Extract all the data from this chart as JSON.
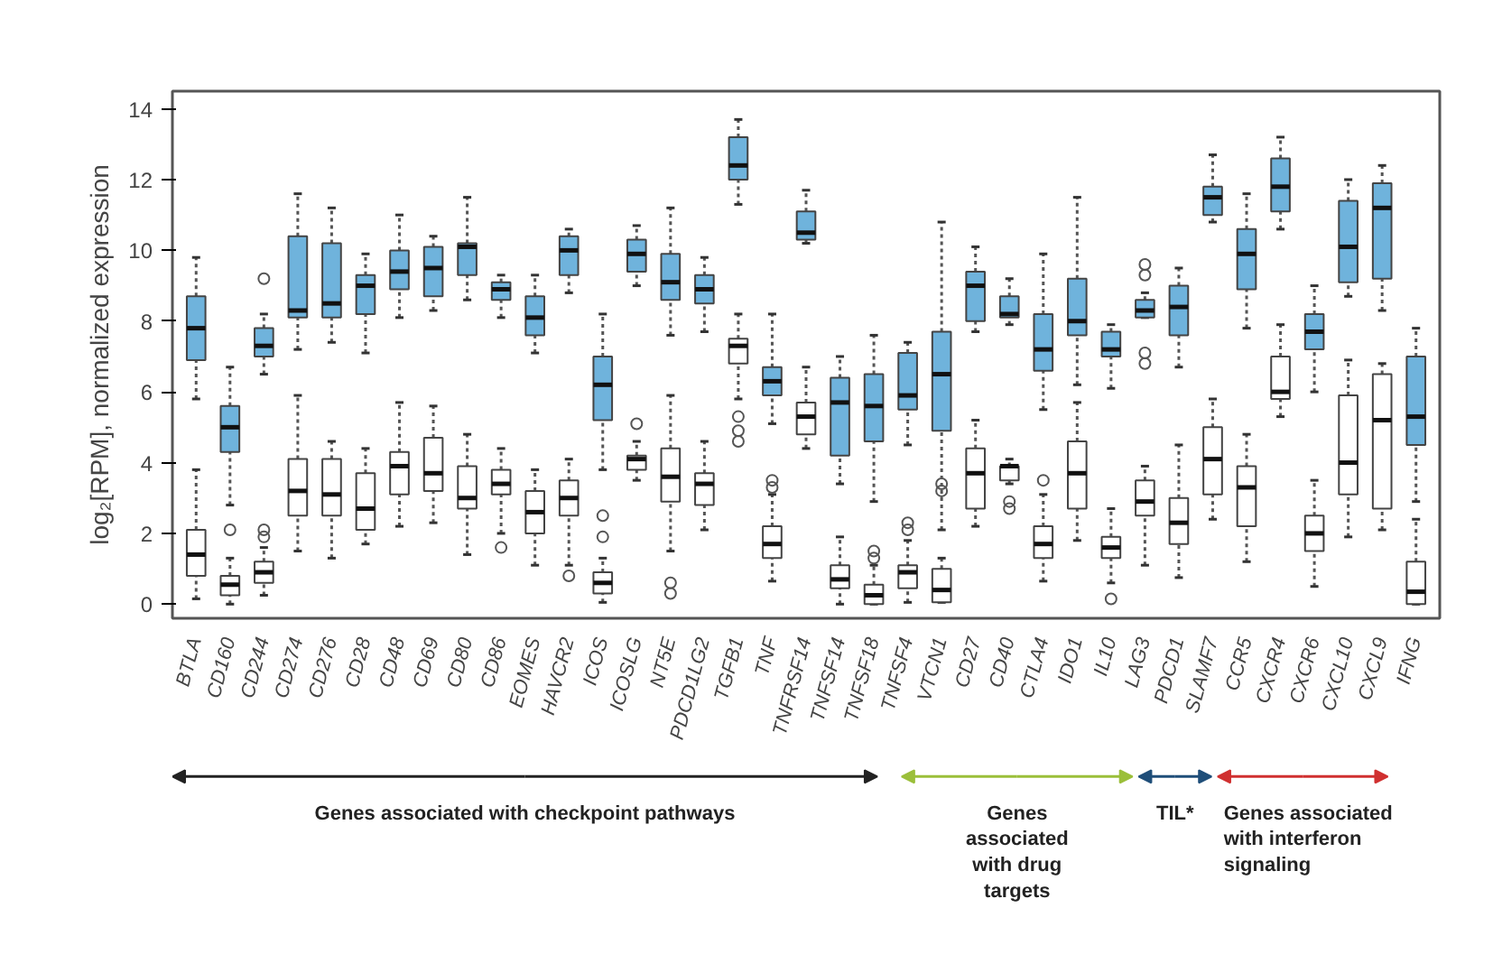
{
  "chart_data": {
    "type": "box",
    "ylabel": "log₂[RPM], normalized expression",
    "ylim": [
      -0.4,
      14.5
    ],
    "yticks": [
      0,
      2,
      4,
      6,
      8,
      10,
      12,
      14
    ],
    "grid": false,
    "categories": [
      "BTLA",
      "CD160",
      "CD244",
      "CD274",
      "CD276",
      "CD28",
      "CD48",
      "CD69",
      "CD80",
      "CD86",
      "EOMES",
      "HAVCR2",
      "ICOS",
      "ICOSLG",
      "NT5E",
      "PDCD1LG2",
      "TGFB1",
      "TNF",
      "TNFRSF14",
      "TNFSF14",
      "TNFSF18",
      "TNFSF4",
      "VTCN1",
      "CD27",
      "CD40",
      "CTLA4",
      "IDO1",
      "IL10",
      "LAG3",
      "PDCD1",
      "SLAMF7",
      "CCR5",
      "CXCR4",
      "CXCR6",
      "CXCL10",
      "CXCL9",
      "IFNG"
    ],
    "series": [
      {
        "color": "#6fb3dc",
        "boxes": [
          {
            "low": 5.8,
            "q1": 6.9,
            "median": 7.8,
            "q3": 8.7,
            "high": 9.8
          },
          {
            "low": 2.8,
            "q1": 4.3,
            "median": 5.0,
            "q3": 5.6,
            "high": 6.7
          },
          {
            "low": 6.5,
            "q1": 7.0,
            "median": 7.3,
            "q3": 7.8,
            "high": 8.2,
            "outliers": [
              9.2
            ]
          },
          {
            "low": 7.2,
            "q1": 8.1,
            "median": 8.3,
            "q3": 10.4,
            "high": 11.6
          },
          {
            "low": 7.4,
            "q1": 8.1,
            "median": 8.5,
            "q3": 10.2,
            "high": 11.2
          },
          {
            "low": 7.1,
            "q1": 8.2,
            "median": 9.0,
            "q3": 9.3,
            "high": 9.9
          },
          {
            "low": 8.1,
            "q1": 8.9,
            "median": 9.4,
            "q3": 10.0,
            "high": 11.0
          },
          {
            "low": 8.3,
            "q1": 8.7,
            "median": 9.5,
            "q3": 10.1,
            "high": 10.4
          },
          {
            "low": 8.6,
            "q1": 9.3,
            "median": 10.1,
            "q3": 10.2,
            "high": 11.5
          },
          {
            "low": 8.1,
            "q1": 8.6,
            "median": 8.9,
            "q3": 9.1,
            "high": 9.3
          },
          {
            "low": 7.1,
            "q1": 7.6,
            "median": 8.1,
            "q3": 8.7,
            "high": 9.3
          },
          {
            "low": 8.8,
            "q1": 9.3,
            "median": 10.0,
            "q3": 10.4,
            "high": 10.6
          },
          {
            "low": 3.8,
            "q1": 5.2,
            "median": 6.2,
            "q3": 7.0,
            "high": 8.2
          },
          {
            "low": 9.0,
            "q1": 9.4,
            "median": 9.9,
            "q3": 10.3,
            "high": 10.7
          },
          {
            "low": 7.6,
            "q1": 8.6,
            "median": 9.1,
            "q3": 9.9,
            "high": 11.2
          },
          {
            "low": 7.7,
            "q1": 8.5,
            "median": 8.9,
            "q3": 9.3,
            "high": 9.8
          },
          {
            "low": 11.3,
            "q1": 12.0,
            "median": 12.4,
            "q3": 13.2,
            "high": 13.7
          },
          {
            "low": 5.1,
            "q1": 5.9,
            "median": 6.3,
            "q3": 6.7,
            "high": 8.2
          },
          {
            "low": 10.2,
            "q1": 10.3,
            "median": 10.5,
            "q3": 11.1,
            "high": 11.7
          },
          {
            "low": 3.4,
            "q1": 4.2,
            "median": 5.7,
            "q3": 6.4,
            "high": 7.0
          },
          {
            "low": 2.9,
            "q1": 4.6,
            "median": 5.6,
            "q3": 6.5,
            "high": 7.6
          },
          {
            "low": 4.5,
            "q1": 5.5,
            "median": 5.9,
            "q3": 7.1,
            "high": 7.4
          },
          {
            "low": 2.1,
            "q1": 4.9,
            "median": 6.5,
            "q3": 7.7,
            "high": 10.8
          },
          {
            "low": 7.7,
            "q1": 8.0,
            "median": 9.0,
            "q3": 9.4,
            "high": 10.1
          },
          {
            "low": 7.9,
            "q1": 8.1,
            "median": 8.2,
            "q3": 8.7,
            "high": 9.2
          },
          {
            "low": 5.5,
            "q1": 6.6,
            "median": 7.2,
            "q3": 8.2,
            "high": 9.9
          },
          {
            "low": 6.2,
            "q1": 7.6,
            "median": 8.0,
            "q3": 9.2,
            "high": 11.5
          },
          {
            "low": 6.1,
            "q1": 7.0,
            "median": 7.2,
            "q3": 7.7,
            "high": 7.9
          },
          {
            "low": 8.1,
            "q1": 8.1,
            "median": 8.3,
            "q3": 8.6,
            "high": 8.8,
            "outliers": [
              9.6,
              9.3,
              7.1,
              6.8
            ]
          },
          {
            "low": 6.7,
            "q1": 7.6,
            "median": 8.4,
            "q3": 9.0,
            "high": 9.5
          },
          {
            "low": 10.8,
            "q1": 11.0,
            "median": 11.5,
            "q3": 11.8,
            "high": 12.7
          },
          {
            "low": 7.8,
            "q1": 8.9,
            "median": 9.9,
            "q3": 10.6,
            "high": 11.6
          },
          {
            "low": 10.6,
            "q1": 11.1,
            "median": 11.8,
            "q3": 12.6,
            "high": 13.2
          },
          {
            "low": 6.0,
            "q1": 7.2,
            "median": 7.7,
            "q3": 8.2,
            "high": 9.0
          },
          {
            "low": 8.7,
            "q1": 9.1,
            "median": 10.1,
            "q3": 11.4,
            "high": 12.0
          },
          {
            "low": 8.3,
            "q1": 9.2,
            "median": 11.2,
            "q3": 11.9,
            "high": 12.4
          },
          {
            "low": 2.9,
            "q1": 4.5,
            "median": 5.3,
            "q3": 7.0,
            "high": 7.8
          }
        ]
      },
      {
        "color": "#ffffff",
        "boxes": [
          {
            "low": 0.15,
            "q1": 0.8,
            "median": 1.4,
            "q3": 2.1,
            "high": 3.8
          },
          {
            "low": 0.0,
            "q1": 0.25,
            "median": 0.55,
            "q3": 0.8,
            "high": 1.3,
            "outliers": [
              2.1
            ]
          },
          {
            "low": 0.25,
            "q1": 0.6,
            "median": 0.9,
            "q3": 1.2,
            "high": 1.6,
            "outliers": [
              2.1,
              1.9
            ]
          },
          {
            "low": 1.5,
            "q1": 2.5,
            "median": 3.2,
            "q3": 4.1,
            "high": 5.9
          },
          {
            "low": 1.3,
            "q1": 2.5,
            "median": 3.1,
            "q3": 4.1,
            "high": 4.6
          },
          {
            "low": 1.7,
            "q1": 2.1,
            "median": 2.7,
            "q3": 3.7,
            "high": 4.4
          },
          {
            "low": 2.2,
            "q1": 3.1,
            "median": 3.9,
            "q3": 4.3,
            "high": 5.7
          },
          {
            "low": 2.3,
            "q1": 3.2,
            "median": 3.7,
            "q3": 4.7,
            "high": 5.6
          },
          {
            "low": 1.4,
            "q1": 2.7,
            "median": 3.0,
            "q3": 3.9,
            "high": 4.8
          },
          {
            "low": 2.0,
            "q1": 3.1,
            "median": 3.4,
            "q3": 3.8,
            "high": 4.4,
            "outliers": [
              1.6
            ]
          },
          {
            "low": 1.1,
            "q1": 2.0,
            "median": 2.6,
            "q3": 3.2,
            "high": 3.8
          },
          {
            "low": 1.1,
            "q1": 2.5,
            "median": 3.0,
            "q3": 3.5,
            "high": 4.1,
            "outliers": [
              0.8
            ]
          },
          {
            "low": 0.05,
            "q1": 0.3,
            "median": 0.6,
            "q3": 0.9,
            "high": 1.3,
            "outliers": [
              2.5,
              1.9
            ]
          },
          {
            "low": 3.5,
            "q1": 3.8,
            "median": 4.1,
            "q3": 4.2,
            "high": 4.6,
            "outliers": [
              5.1
            ]
          },
          {
            "low": 1.5,
            "q1": 2.9,
            "median": 3.6,
            "q3": 4.4,
            "high": 5.9,
            "outliers": [
              0.6,
              0.3
            ]
          },
          {
            "low": 2.1,
            "q1": 2.8,
            "median": 3.4,
            "q3": 3.7,
            "high": 4.6
          },
          {
            "low": 5.8,
            "q1": 6.8,
            "median": 7.3,
            "q3": 7.5,
            "high": 8.2,
            "outliers": [
              5.3,
              4.9,
              4.6
            ]
          },
          {
            "low": 0.65,
            "q1": 1.3,
            "median": 1.7,
            "q3": 2.2,
            "high": 3.1,
            "outliers": [
              3.5,
              3.3
            ]
          },
          {
            "low": 4.4,
            "q1": 4.8,
            "median": 5.3,
            "q3": 5.7,
            "high": 6.7
          },
          {
            "low": 0.0,
            "q1": 0.45,
            "median": 0.7,
            "q3": 1.1,
            "high": 1.9
          },
          {
            "low": 0.0,
            "q1": 0.0,
            "median": 0.25,
            "q3": 0.55,
            "high": 1.1,
            "outliers": [
              1.5,
              1.3
            ]
          },
          {
            "low": 0.05,
            "q1": 0.45,
            "median": 0.9,
            "q3": 1.1,
            "high": 1.8,
            "outliers": [
              2.1,
              2.3
            ]
          },
          {
            "low": 0.05,
            "q1": 0.05,
            "median": 0.4,
            "q3": 1.0,
            "high": 1.3,
            "outliers": [
              3.2,
              3.4
            ]
          },
          {
            "low": 2.2,
            "q1": 2.7,
            "median": 3.7,
            "q3": 4.4,
            "high": 5.2
          },
          {
            "low": 3.4,
            "q1": 3.5,
            "median": 3.9,
            "q3": 3.9,
            "high": 4.1,
            "outliers": [
              2.9,
              2.7
            ]
          },
          {
            "low": 0.65,
            "q1": 1.3,
            "median": 1.7,
            "q3": 2.2,
            "high": 3.1,
            "outliers": [
              3.5
            ]
          },
          {
            "low": 1.8,
            "q1": 2.7,
            "median": 3.7,
            "q3": 4.6,
            "high": 5.7
          },
          {
            "low": 0.6,
            "q1": 1.3,
            "median": 1.6,
            "q3": 1.9,
            "high": 2.7,
            "outliers": [
              0.15
            ]
          },
          {
            "low": 1.1,
            "q1": 2.5,
            "median": 2.9,
            "q3": 3.5,
            "high": 3.9
          },
          {
            "low": 0.75,
            "q1": 1.7,
            "median": 2.3,
            "q3": 3.0,
            "high": 4.5
          },
          {
            "low": 2.4,
            "q1": 3.1,
            "median": 4.1,
            "q3": 5.0,
            "high": 5.8
          },
          {
            "low": 1.2,
            "q1": 2.2,
            "median": 3.3,
            "q3": 3.9,
            "high": 4.8
          },
          {
            "low": 5.3,
            "q1": 5.8,
            "median": 6.0,
            "q3": 7.0,
            "high": 7.9
          },
          {
            "low": 0.5,
            "q1": 1.5,
            "median": 2.0,
            "q3": 2.5,
            "high": 3.5
          },
          {
            "low": 1.9,
            "q1": 3.1,
            "median": 4.0,
            "q3": 5.9,
            "high": 6.9
          },
          {
            "low": 2.1,
            "q1": 2.7,
            "median": 5.2,
            "q3": 6.5,
            "high": 6.8
          },
          {
            "low": 0.0,
            "q1": 0.0,
            "median": 0.35,
            "q3": 1.2,
            "high": 2.4
          }
        ]
      }
    ],
    "annotations": [
      "Genes associated with checkpoint pathways",
      "Genes associated with drug targets",
      "TIL*",
      "Genes associated with interferon signaling"
    ]
  }
}
